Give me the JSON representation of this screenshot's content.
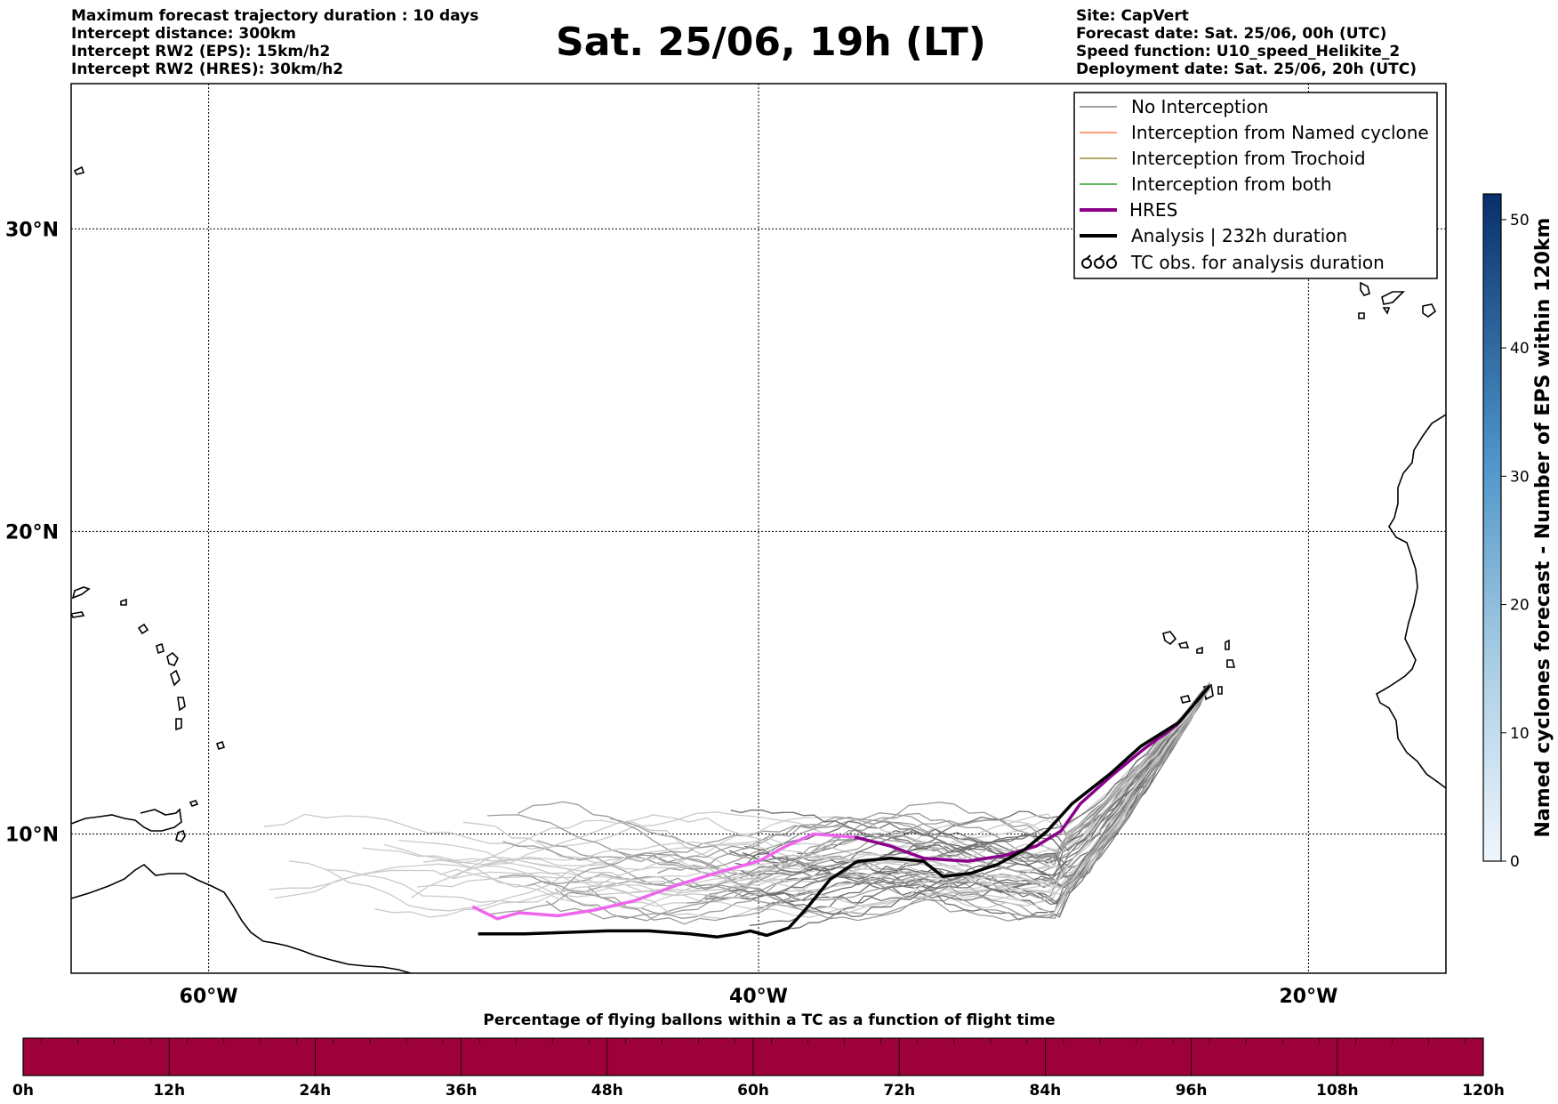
{
  "header": {
    "left_lines": [
      "Maximum forecast trajectory duration : 10 days",
      "Intercept distance: 300km",
      "Intercept RW2 (EPS):  15km/h2",
      "Intercept RW2 (HRES): 30km/h2"
    ],
    "title": "Sat. 25/06, 19h (LT)",
    "right_lines": [
      "Site: CapVert",
      "Forecast date: Sat. 25/06, 00h (UTC)",
      "Speed function: U10_speed_Helikite_2",
      "Deployment date: Sat. 25/06, 20h (UTC)"
    ]
  },
  "map": {
    "lon_labels": [
      "60°W",
      "40°W",
      "20°W"
    ],
    "lat_labels": [
      "30°N",
      "20°N",
      "10°N"
    ],
    "lon_ticks": [
      -60,
      -40,
      -20
    ],
    "lat_ticks": [
      30,
      20,
      10
    ],
    "lon_range": [
      -65,
      -15
    ],
    "lat_range": [
      5.4,
      34.8
    ],
    "site": {
      "lon": -23.6,
      "lat": 14.9
    }
  },
  "legend": {
    "items": [
      {
        "label": "No Interception",
        "color": "#808080",
        "style": "thin"
      },
      {
        "label": "Interception from Named cyclone",
        "color": "#ff7f50",
        "style": "thin"
      },
      {
        "label": "Interception from Trochoid",
        "color": "#9a8a3a",
        "style": "thin"
      },
      {
        "label": "Interception from both",
        "color": "#2ca02c",
        "style": "thin"
      },
      {
        "label": "HRES",
        "color": "#8b008b",
        "style": "thick"
      },
      {
        "label": "Analysis | 232h duration",
        "color": "#000000",
        "style": "thick"
      },
      {
        "label": "TC obs. for analysis duration",
        "color": "#000000",
        "style": "symbol"
      }
    ]
  },
  "colorbar": {
    "label": "Named cyclones forecast - Number of EPS within 120km",
    "ticks": [
      "0",
      "10",
      "20",
      "30",
      "40",
      "50"
    ],
    "min": 0,
    "max": 52
  },
  "bottom_bar": {
    "title": "Percentage of flying ballons within a TC as a function of flight time",
    "ticks": [
      "0h",
      "12h",
      "24h",
      "36h",
      "48h",
      "60h",
      "72h",
      "84h",
      "96h",
      "108h",
      "120h"
    ],
    "color": "#9e003a"
  },
  "chart_data": {
    "type": "line",
    "series": [
      {
        "name": "HRES",
        "color": "#8b008b",
        "points": [
          [
            -50.4,
            7.6
          ],
          [
            -49.5,
            7.2
          ],
          [
            -48.7,
            7.4
          ],
          [
            -47.3,
            7.3
          ],
          [
            -45.9,
            7.5
          ],
          [
            -44.5,
            7.8
          ],
          [
            -43,
            8.3
          ],
          [
            -41.6,
            8.7
          ],
          [
            -40,
            9.1
          ],
          [
            -39,
            9.6
          ],
          [
            -38,
            10
          ],
          [
            -36.5,
            9.9
          ],
          [
            -35.2,
            9.6
          ],
          [
            -34,
            9.2
          ],
          [
            -32.4,
            9.1
          ],
          [
            -31,
            9.3
          ],
          [
            -29.9,
            9.6
          ],
          [
            -29,
            10.1
          ],
          [
            -28.3,
            11
          ],
          [
            -27.2,
            11.9
          ],
          [
            -26,
            12.8
          ],
          [
            -24.8,
            13.6
          ],
          [
            -23.6,
            14.9
          ]
        ]
      },
      {
        "name": "Analysis | 232h duration",
        "color": "#000000",
        "points": [
          [
            -50.2,
            6.7
          ],
          [
            -48.5,
            6.7
          ],
          [
            -47,
            6.75
          ],
          [
            -45.5,
            6.8
          ],
          [
            -44,
            6.8
          ],
          [
            -42.5,
            6.7
          ],
          [
            -41.5,
            6.6
          ],
          [
            -40.8,
            6.7
          ],
          [
            -40.3,
            6.8
          ],
          [
            -39.7,
            6.65
          ],
          [
            -38.9,
            6.9
          ],
          [
            -38.2,
            7.6
          ],
          [
            -37.4,
            8.5
          ],
          [
            -36.4,
            9.1
          ],
          [
            -35.2,
            9.2
          ],
          [
            -34,
            9.1
          ],
          [
            -33.3,
            8.6
          ],
          [
            -32.3,
            8.7
          ],
          [
            -31.3,
            9.0
          ],
          [
            -30.3,
            9.5
          ],
          [
            -29.5,
            10.1
          ],
          [
            -28.6,
            11
          ],
          [
            -27.2,
            12
          ],
          [
            -26.1,
            12.9
          ],
          [
            -24.7,
            13.7
          ],
          [
            -23.6,
            14.9
          ]
        ]
      }
    ]
  }
}
